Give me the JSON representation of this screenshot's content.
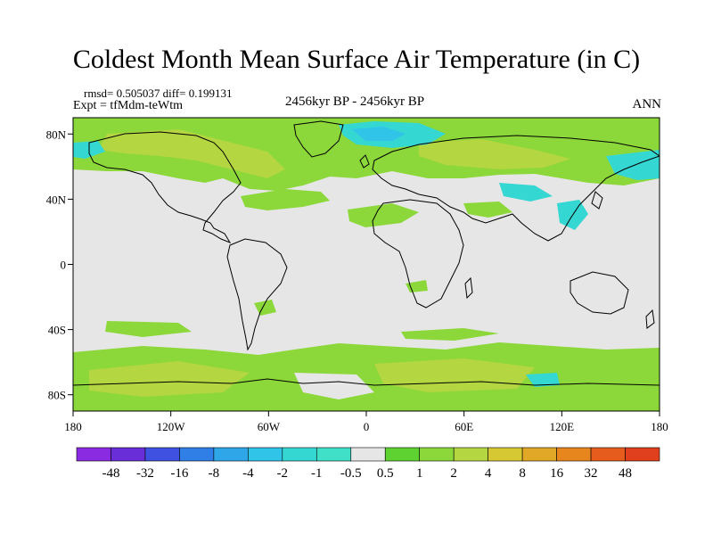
{
  "title": "Coldest Month Mean Surface Air Temperature (in C)",
  "stats": "rmsd= 0.505037 diff= 0.199131",
  "experiment": "Expt = tfMdm-teWtm",
  "period": "2456kyr BP - 2456kyr BP",
  "season": "ANN",
  "lat_ticks": [
    {
      "label": "80N",
      "lat": 80
    },
    {
      "label": "40N",
      "lat": 40
    },
    {
      "label": "0",
      "lat": 0
    },
    {
      "label": "40S",
      "lat": -40
    },
    {
      "label": "80S",
      "lat": -80
    }
  ],
  "lon_ticks": [
    {
      "label": "180",
      "lon": -180
    },
    {
      "label": "120W",
      "lon": -120
    },
    {
      "label": "60W",
      "lon": -60
    },
    {
      "label": "0",
      "lon": 0
    },
    {
      "label": "60E",
      "lon": 60
    },
    {
      "label": "120E",
      "lon": 120
    },
    {
      "label": "180",
      "lon": 180
    }
  ],
  "colorbar": {
    "colors": [
      "#8a2be2",
      "#6a2ed8",
      "#3f51e0",
      "#2f7fe6",
      "#2ea6e8",
      "#2fc4e8",
      "#35d7d2",
      "#40e0c8",
      "#e6e6e6",
      "#5ed230",
      "#8cd83a",
      "#b4d640",
      "#d6c832",
      "#e0a826",
      "#e8861e",
      "#e65c1c",
      "#e0401e"
    ],
    "labels": [
      "-48",
      "-32",
      "-16",
      "-8",
      "-4",
      "-2",
      "-1",
      "-0.5",
      "0.5",
      "1",
      "2",
      "4",
      "8",
      "16",
      "32",
      "48"
    ]
  }
}
